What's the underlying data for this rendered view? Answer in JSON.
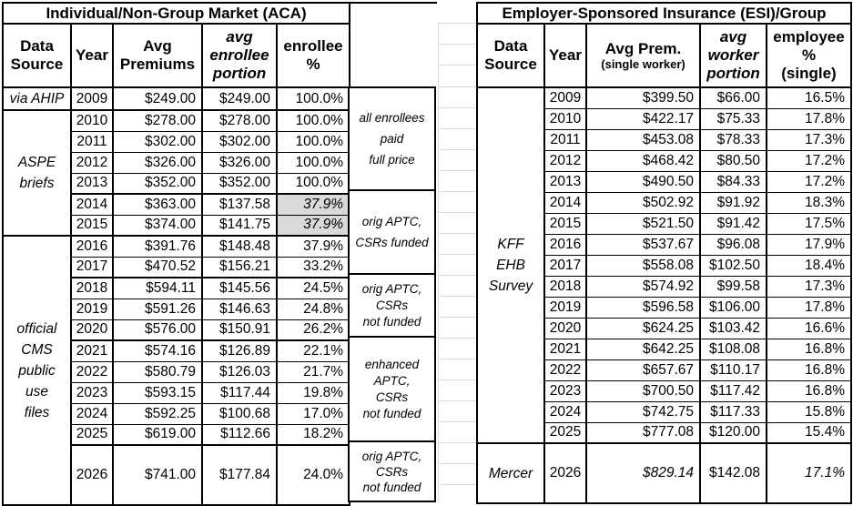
{
  "colors": {
    "border": "#000000",
    "cell_shade": "#d9d9d9",
    "gridline": "#d9d9d9",
    "background": "#ffffff",
    "text": "#000000"
  },
  "chart_data": [
    {
      "type": "table",
      "title": "Individual/Non-Group Market (ACA)",
      "columns": [
        "Data Source",
        "Year",
        "Avg Premiums",
        "avg enrollee portion",
        "enrollee %"
      ],
      "header_display": {
        "source": "Data\nSource",
        "year": "Year",
        "premium": "Avg\nPremiums",
        "portion": "avg\nenrollee\nportion",
        "pct": "enrollee\n%"
      },
      "sources": [
        {
          "label": "via AHIP",
          "display": "via AHIP",
          "covers_years": "2009"
        },
        {
          "label": "ASPE briefs",
          "display": "ASPE\nbriefs",
          "covers_years": "2010-2015"
        },
        {
          "label": "official CMS public use files",
          "display": "official\nCMS\npublic\nuse\nfiles",
          "covers_years": "2016-2026"
        }
      ],
      "rows": [
        {
          "year": "2009",
          "premium": "$249.00",
          "portion": "$249.00",
          "pct": "100.0%"
        },
        {
          "year": "2010",
          "premium": "$278.00",
          "portion": "$278.00",
          "pct": "100.0%"
        },
        {
          "year": "2011",
          "premium": "$302.00",
          "portion": "$302.00",
          "pct": "100.0%"
        },
        {
          "year": "2012",
          "premium": "$326.00",
          "portion": "$326.00",
          "pct": "100.0%"
        },
        {
          "year": "2013",
          "premium": "$352.00",
          "portion": "$352.00",
          "pct": "100.0%"
        },
        {
          "year": "2014",
          "premium": "$363.00",
          "portion": "$137.58",
          "pct": "37.9%"
        },
        {
          "year": "2015",
          "premium": "$374.00",
          "portion": "$141.75",
          "pct": "37.9%"
        },
        {
          "year": "2016",
          "premium": "$391.76",
          "portion": "$148.48",
          "pct": "37.9%"
        },
        {
          "year": "2017",
          "premium": "$470.52",
          "portion": "$156.21",
          "pct": "33.2%"
        },
        {
          "year": "2018",
          "premium": "$594.11",
          "portion": "$145.56",
          "pct": "24.5%"
        },
        {
          "year": "2019",
          "premium": "$591.26",
          "portion": "$146.63",
          "pct": "24.8%"
        },
        {
          "year": "2020",
          "premium": "$576.00",
          "portion": "$150.91",
          "pct": "26.2%"
        },
        {
          "year": "2021",
          "premium": "$574.16",
          "portion": "$126.89",
          "pct": "22.1%"
        },
        {
          "year": "2022",
          "premium": "$580.79",
          "portion": "$126.03",
          "pct": "21.7%"
        },
        {
          "year": "2023",
          "premium": "$593.15",
          "portion": "$117.44",
          "pct": "19.8%"
        },
        {
          "year": "2024",
          "premium": "$592.25",
          "portion": "$100.68",
          "pct": "17.0%"
        },
        {
          "year": "2025",
          "premium": "$619.00",
          "portion": "$112.66",
          "pct": "18.2%"
        },
        {
          "year": "2026",
          "premium": "$741.00",
          "portion": "$177.84",
          "pct": "24.0%"
        }
      ],
      "highlighted_pct_years": [
        "2014",
        "2015"
      ],
      "annotations": [
        {
          "text": "all enrollees\npaid\nfull price",
          "covers_years": "2009-2013"
        },
        {
          "text": "orig APTC,\nCSRs funded",
          "covers_years": "2014-2017"
        },
        {
          "text": "orig APTC,\nCSRs\nnot funded",
          "covers_years": "2018-2020"
        },
        {
          "text": "enhanced\nAPTC,\nCSRs\nnot funded",
          "covers_years": "2021-2025"
        },
        {
          "text": "orig APTC,\nCSRs\nnot funded",
          "covers_years": "2026"
        }
      ]
    },
    {
      "type": "table",
      "title": "Employer-Sponsored Insurance (ESI)/Group",
      "columns": [
        "Data Source",
        "Year",
        "Avg Prem. (single worker)",
        "avg worker portion",
        "employee % (single)"
      ],
      "header_display": {
        "source": "Data\nSource",
        "year": "Year",
        "premium_main": "Avg Prem.",
        "premium_sub": "(single worker)",
        "portion": "avg\nworker\nportion",
        "pct": "employee\n%\n(single)"
      },
      "sources": [
        {
          "label": "KFF EHB Survey",
          "display": "KFF\nEHB\nSurvey",
          "covers_years": "2009-2025"
        },
        {
          "label": "Mercer",
          "display": "Mercer",
          "covers_years": "2026"
        }
      ],
      "rows": [
        {
          "year": "2009",
          "premium": "$399.50",
          "portion": "$66.00",
          "pct": "16.5%"
        },
        {
          "year": "2010",
          "premium": "$422.17",
          "portion": "$75.33",
          "pct": "17.8%"
        },
        {
          "year": "2011",
          "premium": "$453.08",
          "portion": "$78.33",
          "pct": "17.3%"
        },
        {
          "year": "2012",
          "premium": "$468.42",
          "portion": "$80.50",
          "pct": "17.2%"
        },
        {
          "year": "2013",
          "premium": "$490.50",
          "portion": "$84.33",
          "pct": "17.2%"
        },
        {
          "year": "2014",
          "premium": "$502.92",
          "portion": "$91.92",
          "pct": "18.3%"
        },
        {
          "year": "2015",
          "premium": "$521.50",
          "portion": "$91.42",
          "pct": "17.5%"
        },
        {
          "year": "2016",
          "premium": "$537.67",
          "portion": "$96.08",
          "pct": "17.9%"
        },
        {
          "year": "2017",
          "premium": "$558.08",
          "portion": "$102.50",
          "pct": "18.4%"
        },
        {
          "year": "2018",
          "premium": "$574.92",
          "portion": "$99.58",
          "pct": "17.3%"
        },
        {
          "year": "2019",
          "premium": "$596.58",
          "portion": "$106.00",
          "pct": "17.8%"
        },
        {
          "year": "2020",
          "premium": "$624.25",
          "portion": "$103.42",
          "pct": "16.6%"
        },
        {
          "year": "2021",
          "premium": "$642.25",
          "portion": "$108.08",
          "pct": "16.8%"
        },
        {
          "year": "2022",
          "premium": "$657.67",
          "portion": "$110.17",
          "pct": "16.8%"
        },
        {
          "year": "2023",
          "premium": "$700.50",
          "portion": "$117.42",
          "pct": "16.8%"
        },
        {
          "year": "2024",
          "premium": "$742.75",
          "portion": "$117.33",
          "pct": "15.8%"
        },
        {
          "year": "2025",
          "premium": "$777.08",
          "portion": "$120.00",
          "pct": "15.4%"
        },
        {
          "year": "2026",
          "premium": "$829.14",
          "portion": "$142.08",
          "pct": "17.1%"
        }
      ]
    }
  ]
}
